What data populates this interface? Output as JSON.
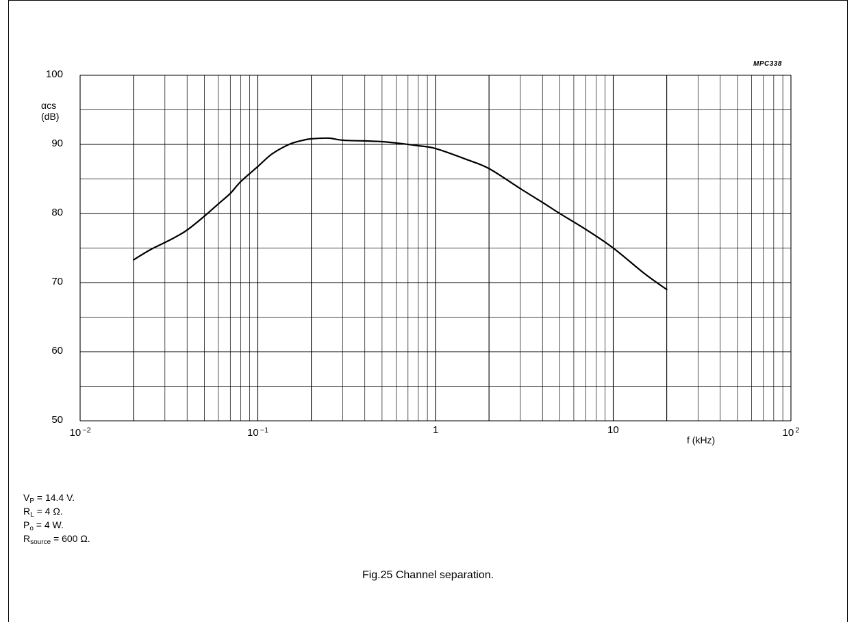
{
  "chart_data": {
    "type": "line",
    "x_scale": "log",
    "xlim": [
      0.01,
      100
    ],
    "ylim": [
      50,
      100
    ],
    "xlabel": "f (kHz)",
    "ylabel_line1": "αcs",
    "ylabel_line2": "(dB)",
    "reference_code": "MPC338",
    "grid": true,
    "x_ticks": [
      {
        "base": "10",
        "exp": "−2"
      },
      {
        "base": "10",
        "exp": "−1"
      },
      {
        "base": "1",
        "exp": ""
      },
      {
        "base": "10",
        "exp": ""
      },
      {
        "base": "10",
        "exp": "2"
      }
    ],
    "y_ticks": [
      "50",
      "60",
      "70",
      "80",
      "90",
      "100"
    ],
    "series": [
      {
        "x": [
          0.02,
          0.025,
          0.03,
          0.035,
          0.04,
          0.05,
          0.06,
          0.07,
          0.08,
          0.1,
          0.12,
          0.15,
          0.18,
          0.2,
          0.25,
          0.3,
          0.4,
          0.5,
          0.6,
          0.7,
          0.8,
          1.0,
          1.5,
          2.0,
          3.0,
          4.0,
          5.0,
          7.0,
          10.0,
          15.0,
          20.0
        ],
        "y": [
          73.3,
          74.8,
          75.8,
          76.7,
          77.6,
          79.6,
          81.4,
          82.9,
          84.6,
          86.8,
          88.6,
          90.0,
          90.6,
          90.8,
          90.9,
          90.6,
          90.5,
          90.4,
          90.2,
          90.0,
          89.8,
          89.4,
          87.8,
          86.5,
          83.6,
          81.6,
          80.0,
          77.7,
          75.0,
          71.3,
          69.0
        ]
      }
    ]
  },
  "conditions": [
    {
      "main": "V",
      "sub": "P",
      "rest": " = 14.4 V."
    },
    {
      "main": "R",
      "sub": "L",
      "rest": " = 4 Ω."
    },
    {
      "main": "P",
      "sub": "o",
      "rest": " = 4 W."
    },
    {
      "main": "R",
      "sub": "source",
      "rest": " = 600 Ω."
    }
  ],
  "caption": "Fig.25  Channel separation."
}
